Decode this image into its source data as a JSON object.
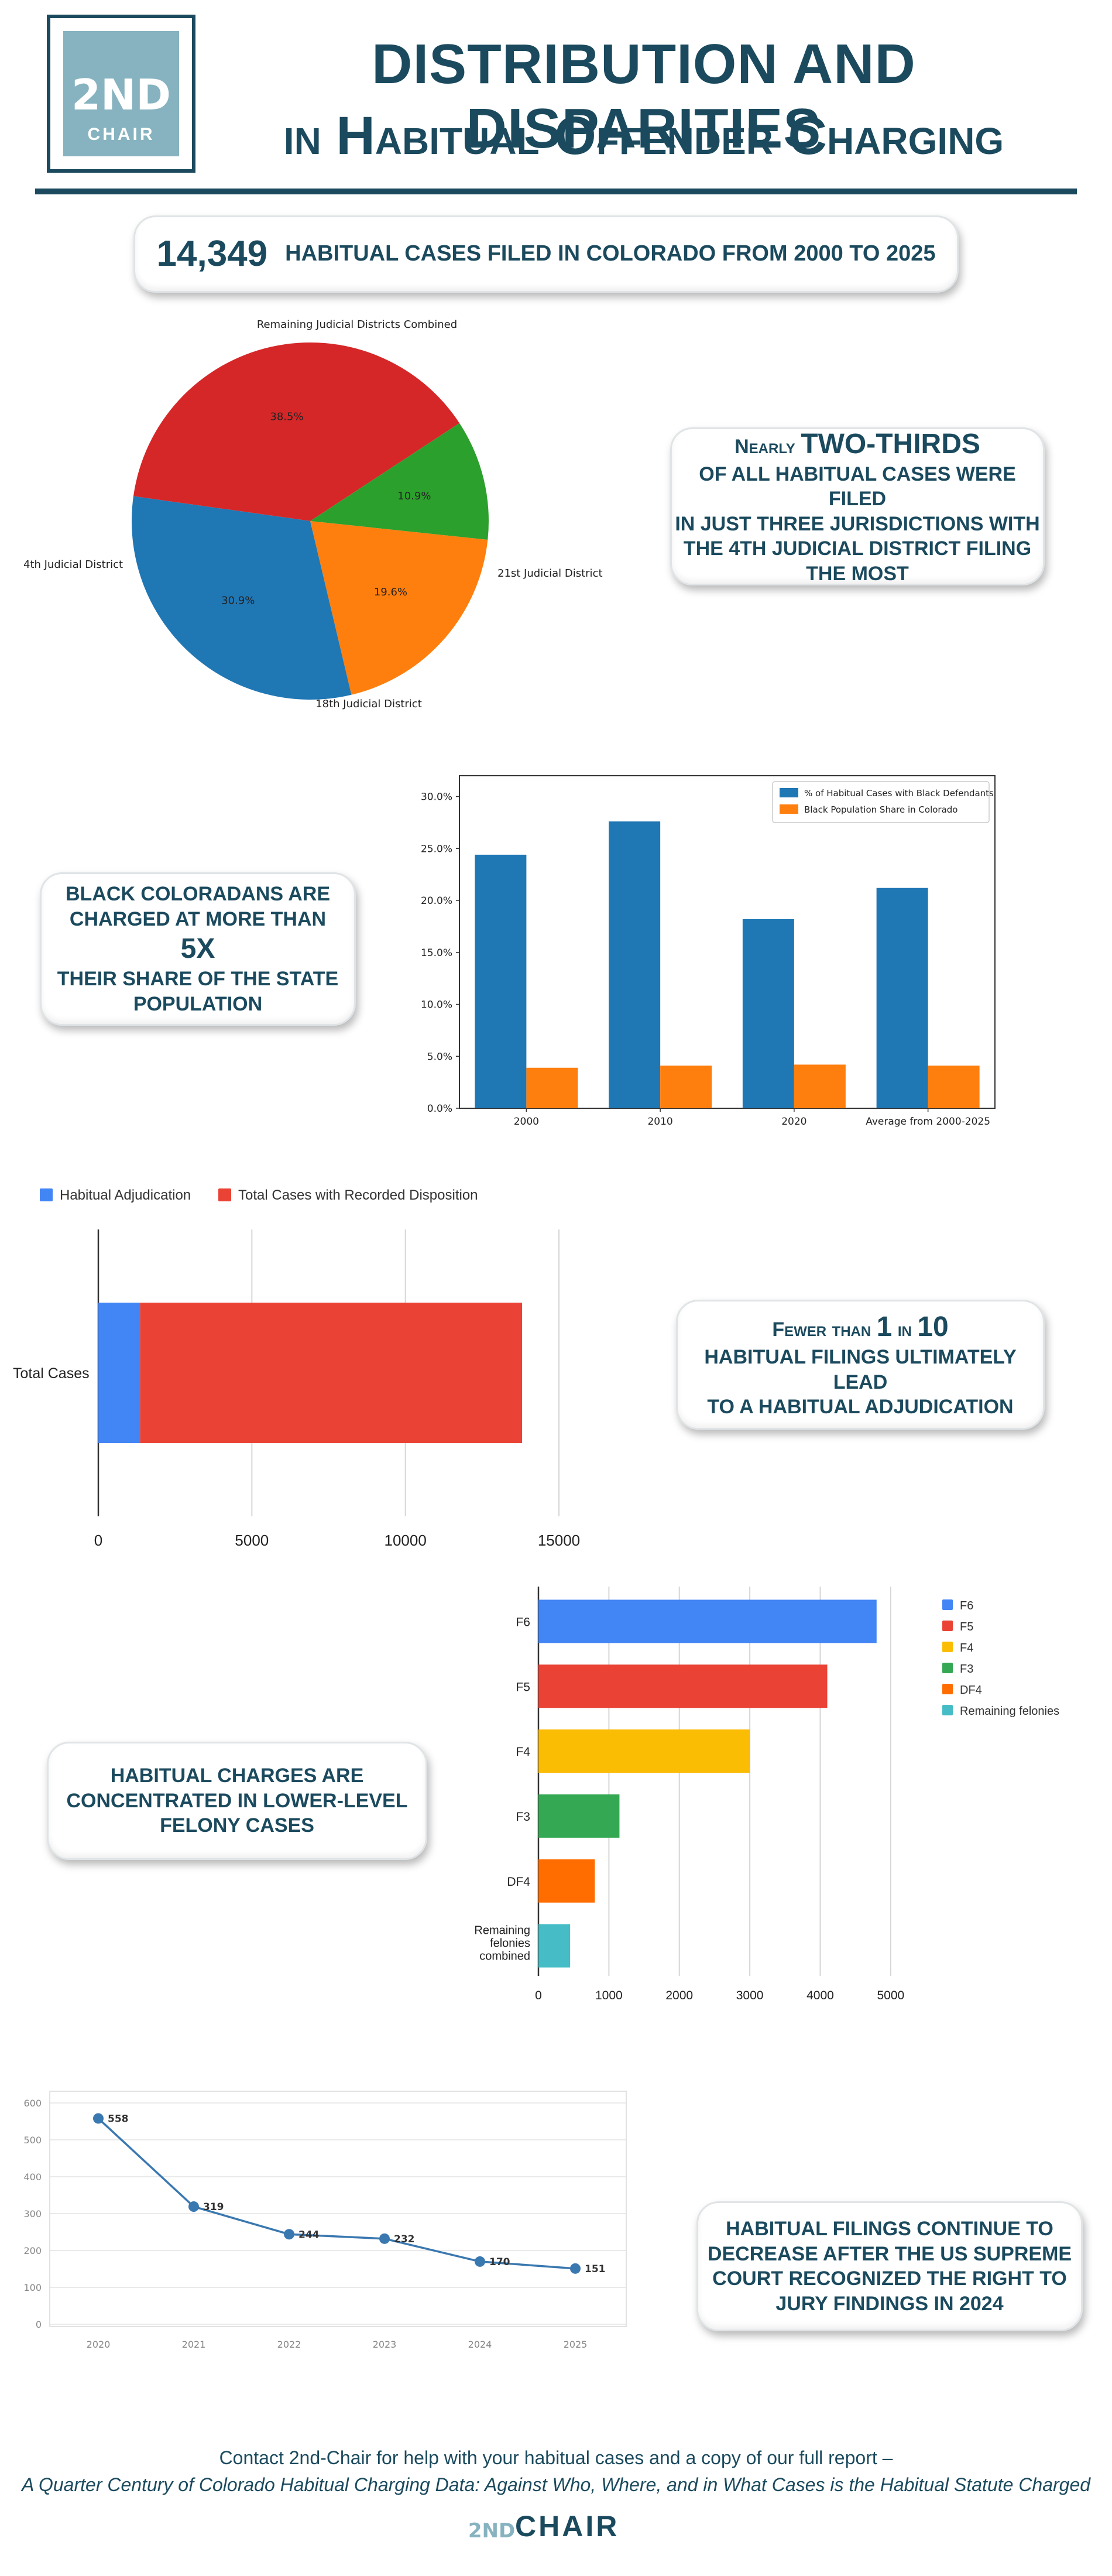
{
  "header": {
    "logo_mark": "2ND",
    "logo_word": "CHAIR",
    "title_line1": "DISTRIBUTION AND DISPARITIES",
    "title_line2": "in Habitual Offender Charging"
  },
  "stat_banner": {
    "number": "14,349",
    "text": "HABITUAL CASES FILED IN COLORADO FROM 2000 TO 2025"
  },
  "callouts": {
    "two_thirds": {
      "lead": "Nearly",
      "emphasis": "TWO-THIRDS",
      "line2": "OF ALL HABITUAL CASES WERE FILED",
      "line3": "IN JUST THREE JURISDICTIONS WITH",
      "line4": "THE 4TH JUDICIAL DISTRICT FILING",
      "line5": "THE MOST"
    },
    "black": {
      "line1": "BLACK COLORADANS ARE",
      "line2": "CHARGED AT MORE THAN",
      "emphasis": "5X",
      "line3": "THEIR SHARE OF THE STATE",
      "line4": "POPULATION"
    },
    "fewer": {
      "prefix": "Fewer than",
      "num1": "1",
      "mid": "in",
      "num2": "10",
      "line2": "HABITUAL FILINGS ULTIMATELY LEAD",
      "line3": "TO A HABITUAL ADJUDICATION"
    },
    "felony": {
      "line1": "HABITUAL CHARGES ARE",
      "line2": "CONCENTRATED IN LOWER-LEVEL",
      "line3": "FELONY CASES"
    },
    "decrease": {
      "line1": "HABITUAL FILINGS CONTINUE TO",
      "line2": "DECREASE AFTER THE US SUPREME",
      "line3": "COURT RECOGNIZED THE RIGHT TO",
      "line4": "JURY FINDINGS IN 2024"
    }
  },
  "chart_data": [
    {
      "type": "pie",
      "title": "",
      "labels": [
        "Remaining Judicial Districts Combined",
        "21st Judicial District",
        "18th Judicial District",
        "4th Judicial District"
      ],
      "values": [
        38.5,
        10.9,
        19.6,
        30.9
      ],
      "value_labels": [
        "38.5%",
        "10.9%",
        "19.6%",
        "30.9%"
      ],
      "colors": [
        "#d62728",
        "#2ca02c",
        "#ff7f0e",
        "#1f77b4"
      ]
    },
    {
      "type": "bar",
      "categories": [
        "2000",
        "2010",
        "2020",
        "Average from 2000-2025"
      ],
      "series": [
        {
          "name": "% of Habitual Cases with Black Defendants",
          "values": [
            24.4,
            27.6,
            18.2,
            21.2
          ],
          "color": "#1f77b4"
        },
        {
          "name": "Black Population Share in Colorado",
          "values": [
            3.9,
            4.1,
            4.2,
            4.1
          ],
          "color": "#ff7f0e"
        }
      ],
      "ylim": [
        0,
        32
      ],
      "yticks": [
        "0.0%",
        "5.0%",
        "10.0%",
        "15.0%",
        "20.0%",
        "25.0%",
        "30.0%"
      ],
      "legend": "top-right"
    },
    {
      "type": "bar",
      "orientation": "horizontal",
      "stacked": true,
      "categories": [
        "Total Cases"
      ],
      "series": [
        {
          "name": "Habitual Adjudication",
          "values": [
            1360
          ],
          "color": "#4285f4"
        },
        {
          "name": "Total Cases with Recorded Disposition",
          "values": [
            12440
          ],
          "color": "#ea4335"
        }
      ],
      "xlim": [
        0,
        15000
      ],
      "xticks": [
        "0",
        "5000",
        "10000",
        "15000"
      ],
      "legend": "top"
    },
    {
      "type": "bar",
      "orientation": "horizontal",
      "categories": [
        "F6",
        "F5",
        "F4",
        "F3",
        "DF4",
        "Remaining felonies combined"
      ],
      "values": [
        4800,
        4100,
        3000,
        1150,
        800,
        450
      ],
      "colors": [
        "#4285f4",
        "#ea4335",
        "#fbbc04",
        "#34a853",
        "#ff6d01",
        "#46bdc6"
      ],
      "legend_labels": [
        "F6",
        "F5",
        "F4",
        "F3",
        "DF4",
        "Remaining felonies"
      ],
      "xlim": [
        0,
        5400
      ],
      "xticks": [
        "0",
        "1000",
        "2000",
        "3000",
        "4000",
        "5000"
      ],
      "legend": "right"
    },
    {
      "type": "line",
      "x": [
        "2020",
        "2021",
        "2022",
        "2023",
        "2024",
        "2025"
      ],
      "values": [
        558,
        319,
        244,
        232,
        170,
        151
      ],
      "value_labels": [
        "558",
        "319",
        "244",
        "232",
        "170",
        "151"
      ],
      "ylim": [
        0,
        600
      ],
      "yticks": [
        "0",
        "100",
        "200",
        "300",
        "400",
        "500",
        "600"
      ],
      "color": "#3a78b0"
    }
  ],
  "footer": {
    "line1": "Contact 2nd-Chair for help with your habitual cases and a copy of our full report –",
    "line2": "A Quarter Century of Colorado Habitual Charging Data: Against Who, Where, and in What Cases is the Habitual Statute Charged",
    "logo_mark": "2ND",
    "logo_word": "CHAIR"
  }
}
